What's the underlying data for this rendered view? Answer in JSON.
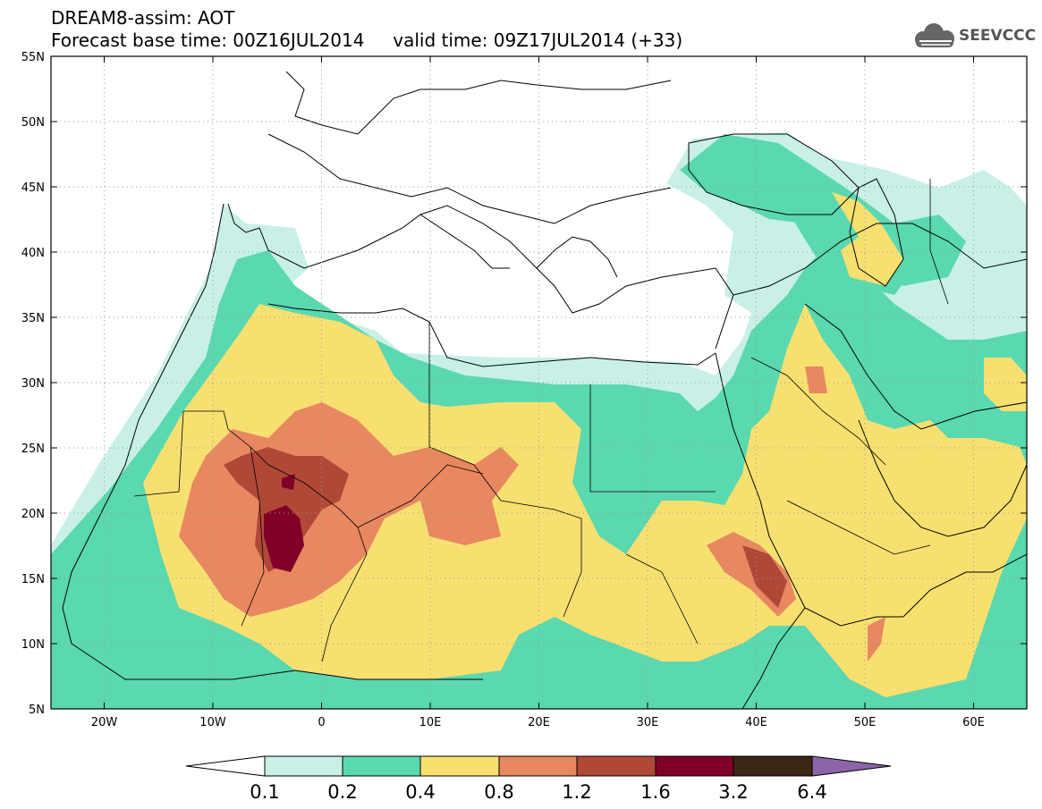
{
  "header": {
    "title_line1": "DREAM8-assim: AOT",
    "title_line2": "Forecast base time: 00Z16JUL2014     valid time: 09Z17JUL2014 (+33)",
    "logo_text": "SEEVCCC"
  },
  "axes": {
    "lat_labels": [
      "55N",
      "50N",
      "45N",
      "40N",
      "35N",
      "30N",
      "25N",
      "20N",
      "15N",
      "10N",
      "5N"
    ],
    "lon_labels": [
      "20W",
      "10W",
      "0",
      "10E",
      "20E",
      "30E",
      "40E",
      "50E",
      "60E"
    ]
  },
  "colorbar": {
    "labels": [
      "0.1",
      "0.2",
      "0.4",
      "0.8",
      "1.2",
      "1.6",
      "3.2",
      "6.4"
    ],
    "colors": [
      "#ffffff",
      "#c8f0e8",
      "#5ad8b0",
      "#f8e070",
      "#e88860",
      "#b04838",
      "#800028",
      "#3c2814",
      "#8c64aa"
    ]
  },
  "palette": {
    "land_border": "#000000",
    "grid": "#999999"
  }
}
